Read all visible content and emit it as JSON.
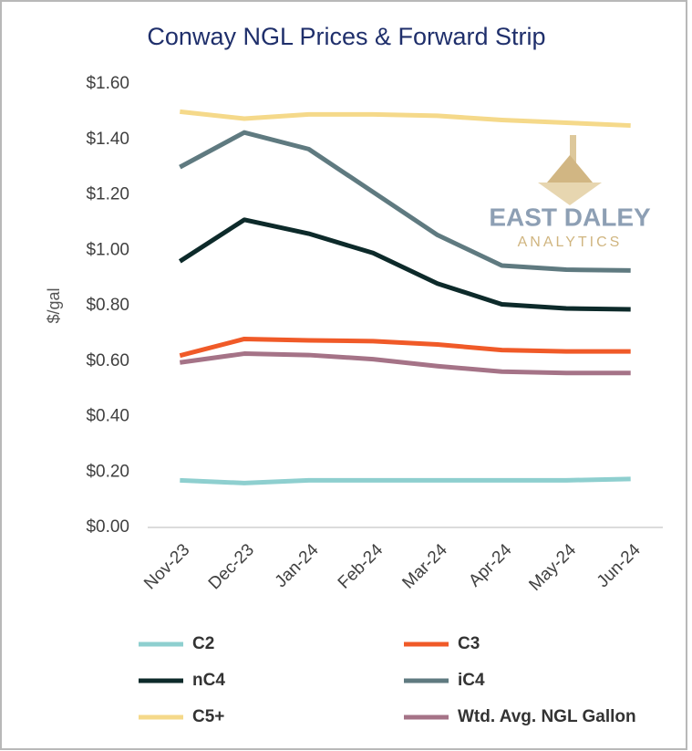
{
  "chart_data": {
    "type": "line",
    "title": "Conway NGL Prices & Forward Strip",
    "y_label": "$/gal",
    "logo": {
      "name": "EAST DALEY",
      "tagline": "ANALYTICS"
    },
    "categories": [
      "Nov-23",
      "Dec-23",
      "Jan-24",
      "Feb-24",
      "Mar-24",
      "Apr-24",
      "May-24",
      "Jun-24"
    ],
    "series": [
      {
        "name": "C2",
        "color": "#8ecfcf",
        "values": [
          0.17,
          0.16,
          0.17,
          0.17,
          0.17,
          0.17,
          0.17,
          0.175
        ]
      },
      {
        "name": "C3",
        "color": "#f05a28",
        "values": [
          0.62,
          0.68,
          0.675,
          0.672,
          0.66,
          0.64,
          0.635,
          0.635
        ]
      },
      {
        "name": "nC4",
        "color": "#0d2a2a",
        "values": [
          0.96,
          1.11,
          1.06,
          0.99,
          0.88,
          0.805,
          0.79,
          0.787
        ]
      },
      {
        "name": "iC4",
        "color": "#5f7a80",
        "values": [
          1.3,
          1.425,
          1.365,
          1.21,
          1.055,
          0.945,
          0.93,
          0.927
        ]
      },
      {
        "name": "C5+",
        "color": "#f5d98a",
        "values": [
          1.5,
          1.475,
          1.49,
          1.49,
          1.485,
          1.47,
          1.46,
          1.45
        ]
      },
      {
        "name": "Wtd. Avg. NGL Gallon",
        "color": "#a57387",
        "values": [
          0.595,
          0.627,
          0.622,
          0.607,
          0.582,
          0.562,
          0.557,
          0.557
        ]
      }
    ],
    "ylim": [
      0,
      1.6
    ],
    "yticks": [
      {
        "value": 0,
        "label": "$0.00"
      },
      {
        "value": 0.2,
        "label": "$0.20"
      },
      {
        "value": 0.4,
        "label": "$0.40"
      },
      {
        "value": 0.6,
        "label": "$0.60"
      },
      {
        "value": 0.8,
        "label": "$0.80"
      },
      {
        "value": 1.0,
        "label": "$1.00"
      },
      {
        "value": 1.2,
        "label": "$1.20"
      },
      {
        "value": 1.4,
        "label": "$1.40"
      },
      {
        "value": 1.6,
        "label": "$1.60"
      }
    ],
    "grid": false
  }
}
